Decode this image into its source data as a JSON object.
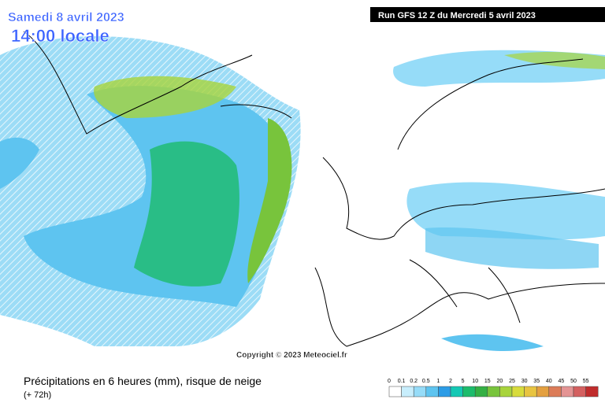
{
  "header": {
    "date": "Samedi 8 avril 2023",
    "time": "14:00 locale",
    "run": "Run GFS 12 Z du Mercredi 5 avril 2023"
  },
  "copyright": "Copyright © 2023 Meteociel.fr",
  "footer": {
    "title": "Précipitations en 6 heures (mm), risque de neige",
    "lead": "(+ 72h)"
  },
  "legend": {
    "ticks": [
      0,
      0.1,
      0.2,
      0.5,
      1,
      2,
      5,
      10,
      15,
      20,
      25,
      30,
      35,
      40,
      45,
      50,
      55
    ],
    "colors": [
      "#ffffff",
      "#c8eefc",
      "#96dcf8",
      "#5ec4f0",
      "#2c9ce6",
      "#14c8b4",
      "#1cbc6c",
      "#34b044",
      "#78c43c",
      "#a8d43c",
      "#d8dc3c",
      "#e8c440",
      "#e4a040",
      "#dc7c58",
      "#e49494",
      "#d46060",
      "#c02c2c"
    ]
  }
}
